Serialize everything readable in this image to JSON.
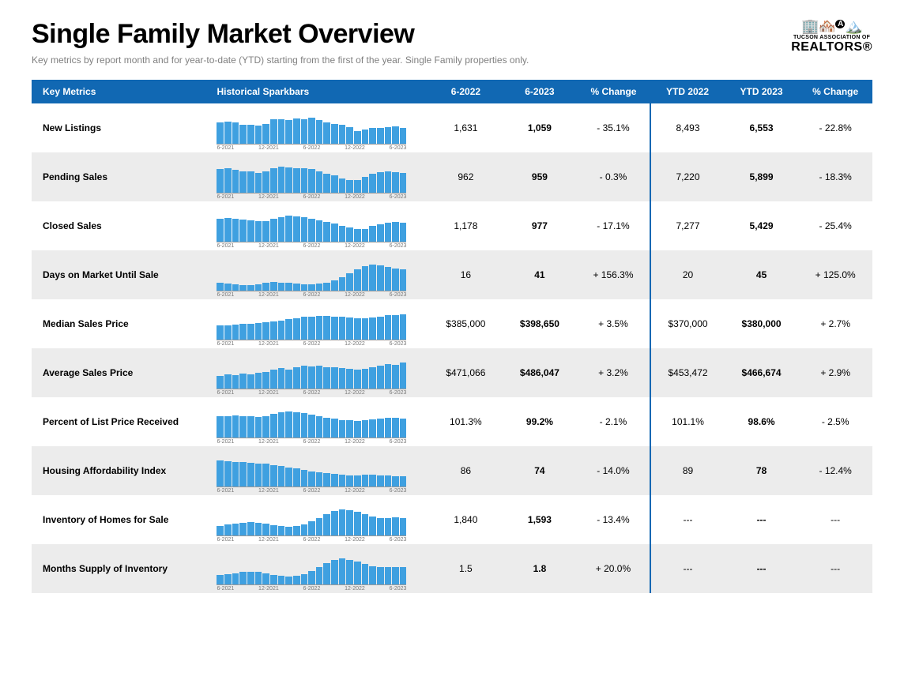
{
  "title": "Single Family Market Overview",
  "subtitle": "Key metrics by report month and for year-to-date (YTD) starting from the first of the year. Single Family properties only.",
  "logo": {
    "line1": "TUCSON ASSOCIATION OF",
    "line2": "REALTORS®"
  },
  "colors": {
    "header_bg": "#1168b3",
    "header_text": "#ffffff",
    "bar_color": "#3fa0e0",
    "row_odd_bg": "#ececec",
    "row_even_bg": "#ffffff",
    "subtitle_color": "#808080"
  },
  "columns": {
    "metric": "Key Metrics",
    "spark": "Historical Sparkbars",
    "prior": "6-2022",
    "current": "6-2023",
    "change": "% Change",
    "ytd_prior": "YTD 2022",
    "ytd_current": "YTD 2023",
    "ytd_change": "% Change"
  },
  "spark_axis_labels": [
    "6-2021",
    "12-2021",
    "6-2022",
    "12-2022",
    "6-2023"
  ],
  "rows": [
    {
      "metric": "New Listings",
      "prior": "1,631",
      "current": "1,059",
      "change": "- 35.1%",
      "ytd_prior": "8,493",
      "ytd_current": "6,553",
      "ytd_change": "- 22.8%",
      "spark": [
        78,
        82,
        80,
        72,
        70,
        68,
        74,
        90,
        92,
        88,
        94,
        92,
        96,
        88,
        80,
        74,
        70,
        62,
        48,
        52,
        58,
        60,
        62,
        64,
        60
      ]
    },
    {
      "metric": "Pending Sales",
      "prior": "962",
      "current": "959",
      "change": "- 0.3%",
      "ytd_prior": "7,220",
      "ytd_current": "5,899",
      "ytd_change": "- 18.3%",
      "spark": [
        88,
        90,
        86,
        80,
        78,
        74,
        78,
        92,
        96,
        94,
        92,
        90,
        88,
        80,
        72,
        66,
        54,
        48,
        46,
        58,
        70,
        76,
        78,
        76,
        74
      ]
    },
    {
      "metric": "Closed Sales",
      "prior": "1,178",
      "current": "977",
      "change": "- 17.1%",
      "ytd_prior": "7,277",
      "ytd_current": "5,429",
      "ytd_change": "- 25.4%",
      "spark": [
        84,
        88,
        86,
        82,
        78,
        76,
        76,
        84,
        92,
        96,
        94,
        90,
        86,
        80,
        74,
        68,
        60,
        52,
        46,
        48,
        58,
        66,
        72,
        74,
        70
      ]
    },
    {
      "metric": "Days on Market Until Sale",
      "prior": "16",
      "current": "41",
      "change": "+ 156.3%",
      "ytd_prior": "20",
      "ytd_current": "45",
      "ytd_change": "+ 125.0%",
      "spark": [
        28,
        26,
        24,
        22,
        22,
        24,
        30,
        32,
        30,
        28,
        26,
        24,
        24,
        26,
        30,
        38,
        50,
        64,
        78,
        92,
        96,
        94,
        88,
        82,
        78
      ]
    },
    {
      "metric": "Median Sales Price",
      "prior": "$385,000",
      "current": "$398,650",
      "change": "+ 3.5%",
      "ytd_prior": "$370,000",
      "ytd_current": "$380,000",
      "ytd_change": "+ 2.7%",
      "spark": [
        52,
        54,
        56,
        58,
        60,
        62,
        64,
        68,
        72,
        76,
        80,
        84,
        86,
        88,
        88,
        86,
        84,
        82,
        80,
        80,
        82,
        86,
        90,
        92,
        94
      ]
    },
    {
      "metric": "Average Sales Price",
      "prior": "$471,066",
      "current": "$486,047",
      "change": "+ 3.2%",
      "ytd_prior": "$453,472",
      "ytd_current": "$466,674",
      "ytd_change": "+ 2.9%",
      "spark": [
        48,
        54,
        50,
        56,
        52,
        58,
        62,
        70,
        76,
        72,
        80,
        84,
        82,
        86,
        80,
        78,
        76,
        74,
        72,
        74,
        80,
        86,
        90,
        88,
        96
      ]
    },
    {
      "metric": "Percent of List Price Received",
      "prior": "101.3%",
      "current": "99.2%",
      "change": "- 2.1%",
      "ytd_prior": "101.1%",
      "ytd_current": "98.6%",
      "ytd_change": "- 2.5%",
      "spark": [
        78,
        80,
        82,
        80,
        78,
        76,
        80,
        88,
        94,
        96,
        94,
        90,
        86,
        80,
        74,
        70,
        66,
        64,
        62,
        64,
        68,
        72,
        74,
        74,
        72
      ]
    },
    {
      "metric": "Housing Affordability Index",
      "prior": "86",
      "current": "74",
      "change": "- 14.0%",
      "ytd_prior": "89",
      "ytd_current": "78",
      "ytd_change": "- 12.4%",
      "spark": [
        96,
        94,
        92,
        90,
        88,
        86,
        84,
        80,
        76,
        72,
        68,
        62,
        56,
        52,
        50,
        46,
        44,
        42,
        42,
        44,
        44,
        42,
        40,
        38,
        38
      ]
    },
    {
      "metric": "Inventory of Homes for Sale",
      "prior": "1,840",
      "current": "1,593",
      "change": "- 13.4%",
      "ytd_prior": "---",
      "ytd_current": "---",
      "ytd_change": "---",
      "spark": [
        36,
        40,
        44,
        48,
        50,
        48,
        44,
        38,
        34,
        32,
        34,
        40,
        52,
        66,
        80,
        92,
        96,
        94,
        88,
        78,
        70,
        66,
        66,
        68,
        66
      ]
    },
    {
      "metric": "Months Supply of Inventory",
      "prior": "1.5",
      "current": "1.8",
      "change": "+ 20.0%",
      "ytd_prior": "---",
      "ytd_current": "---",
      "ytd_change": "---",
      "spark": [
        34,
        38,
        42,
        46,
        48,
        46,
        42,
        36,
        32,
        30,
        32,
        38,
        50,
        64,
        78,
        90,
        96,
        92,
        86,
        76,
        68,
        64,
        64,
        66,
        64
      ]
    }
  ]
}
